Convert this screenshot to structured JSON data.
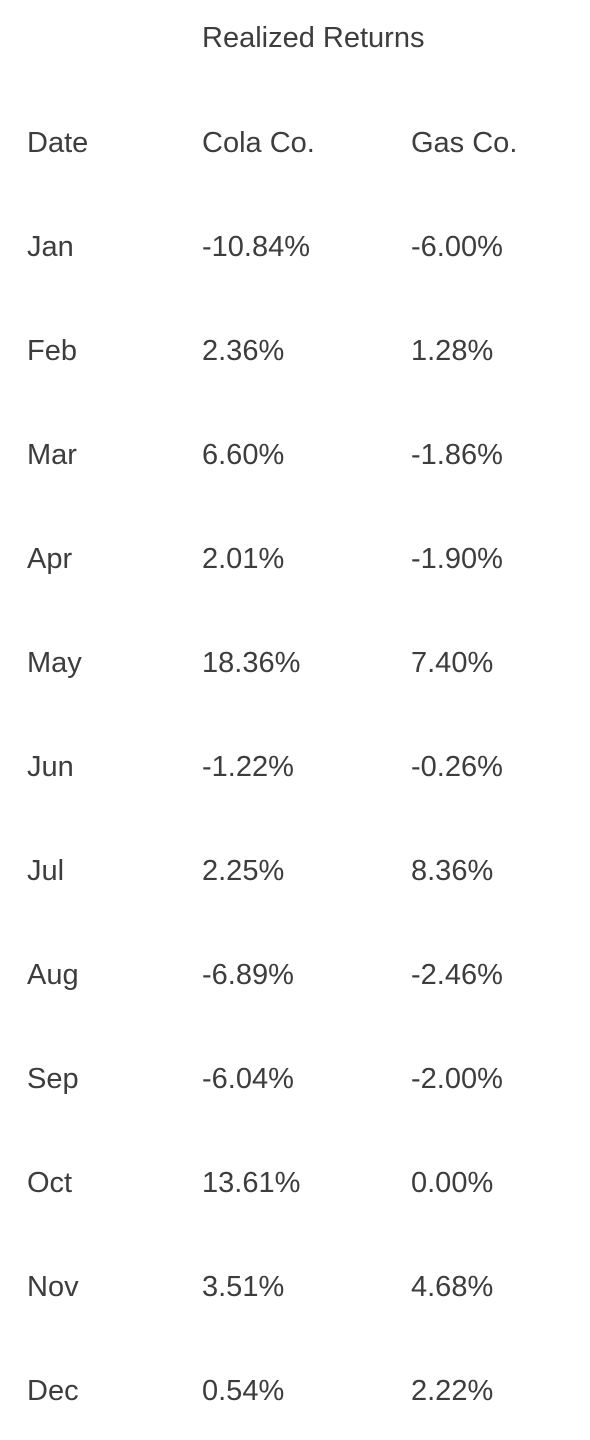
{
  "table": {
    "caption": "Realized Returns",
    "columns": [
      "Date",
      "Cola Co.",
      "Gas Co."
    ],
    "rows": [
      [
        "Jan",
        "-10.84%",
        "-6.00%"
      ],
      [
        "Feb",
        "2.36%",
        "1.28%"
      ],
      [
        "Mar",
        "6.60%",
        "-1.86%"
      ],
      [
        "Apr",
        "2.01%",
        "-1.90%"
      ],
      [
        "May",
        "18.36%",
        "7.40%"
      ],
      [
        "Jun",
        "-1.22%",
        "-0.26%"
      ],
      [
        "Jul",
        "2.25%",
        "8.36%"
      ],
      [
        "Aug",
        "-6.89%",
        "-2.46%"
      ],
      [
        "Sep",
        "-6.04%",
        "-2.00%"
      ],
      [
        "Oct",
        "13.61%",
        "0.00%"
      ],
      [
        "Nov",
        "3.51%",
        "4.68%"
      ],
      [
        "Dec",
        "0.54%",
        "2.22%"
      ]
    ]
  }
}
